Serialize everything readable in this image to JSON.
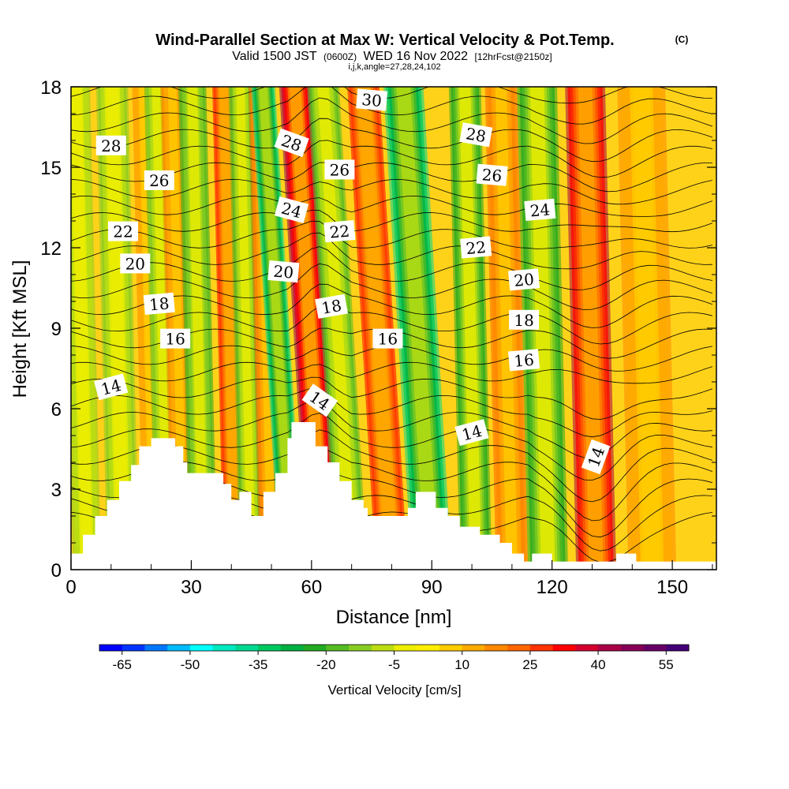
{
  "title": {
    "main": "Wind-Parallel Section at Max W: Vertical Velocity & Pot.Temp.",
    "copyright": "(C)",
    "valid_prefix": "Valid 1500 JST",
    "valid_z": "(0600Z)",
    "valid_date": "WED 16 Nov 2022",
    "forecast": "[12hrFcst@2150z]",
    "indices": "i,j,k,angle=27,28,24,102"
  },
  "chart_data": {
    "type": "heatmap",
    "description_fields": "vertical velocity shaded, potential temperature contoured",
    "xlabel": "Distance [nm]",
    "ylabel": "Height [Kft MSL]",
    "xlim": [
      0,
      161
    ],
    "ylim": [
      0,
      18
    ],
    "x_ticks": [
      "0",
      "30",
      "60",
      "90",
      "120",
      "150"
    ],
    "y_ticks": [
      "0",
      "3",
      "6",
      "9",
      "12",
      "15",
      "18"
    ],
    "colorbar": {
      "title": "Vertical Velocity [cm/s]",
      "min": -70,
      "max": 60,
      "step": 5,
      "tick_labels": [
        "-65",
        "-50",
        "-35",
        "-20",
        "-5",
        "10",
        "25",
        "40",
        "55"
      ],
      "colors": [
        "#0000ff",
        "#0033ff",
        "#0077ff",
        "#00bbff",
        "#00ffff",
        "#00e8c0",
        "#00d890",
        "#00c860",
        "#00b040",
        "#22aa22",
        "#55bb22",
        "#88cc22",
        "#bbdd11",
        "#eeee00",
        "#ffee00",
        "#ffcc00",
        "#ffaa00",
        "#ff8800",
        "#ff6600",
        "#ff3300",
        "#ff0000",
        "#d40030",
        "#aa0044",
        "#880055",
        "#660066",
        "#440077"
      ]
    },
    "velocity_columns": [
      {
        "x": 4,
        "w": -12,
        "z_top": 18,
        "width": 3.5
      },
      {
        "x": 13,
        "w": -15,
        "z_top": 18,
        "width": 4
      },
      {
        "x": 21,
        "w": 15,
        "z_top": 18,
        "width": 3
      },
      {
        "x": 24,
        "w": -18,
        "z_top": 18,
        "width": 3
      },
      {
        "x": 28,
        "w": 18,
        "z_top": 18,
        "width": 3
      },
      {
        "x": 33,
        "w": -22,
        "z_top": 18,
        "width": 3.5
      },
      {
        "x": 41,
        "w": 30,
        "z_top": 18,
        "width": 3
      },
      {
        "x": 45,
        "w": -20,
        "z_top": 18,
        "width": 3
      },
      {
        "x": 50,
        "w": 20,
        "z_top": 18,
        "width": 3
      },
      {
        "x": 55,
        "w": -38,
        "z_top": 18,
        "width": 3
      },
      {
        "x": 63,
        "w": 45,
        "z_top": 18,
        "width": 4
      },
      {
        "x": 70,
        "w": -20,
        "z_top": 18,
        "width": 4
      },
      {
        "x": 80,
        "w": 30,
        "z_top": 18,
        "width": 4
      },
      {
        "x": 90,
        "w": -38,
        "z_top": 18,
        "width": 5
      },
      {
        "x": 101,
        "w": -25,
        "z_top": 18,
        "width": 4
      },
      {
        "x": 110,
        "w": 20,
        "z_top": 18,
        "width": 4
      },
      {
        "x": 119,
        "w": -25,
        "z_top": 18,
        "width": 5
      },
      {
        "x": 131,
        "w": 40,
        "z_top": 18,
        "width": 5
      },
      {
        "x": 145,
        "w": 15,
        "z_top": 18,
        "width": 6
      }
    ],
    "terrain": [
      [
        0,
        0.6
      ],
      [
        3,
        0.6
      ],
      [
        3,
        1.3
      ],
      [
        6,
        1.3
      ],
      [
        6,
        2.0
      ],
      [
        9,
        2.0
      ],
      [
        9,
        2.6
      ],
      [
        12,
        2.6
      ],
      [
        12,
        3.3
      ],
      [
        15,
        3.3
      ],
      [
        15,
        3.9
      ],
      [
        17,
        3.9
      ],
      [
        17,
        4.6
      ],
      [
        20,
        4.6
      ],
      [
        20,
        4.9
      ],
      [
        26,
        4.9
      ],
      [
        26,
        4.6
      ],
      [
        28,
        4.6
      ],
      [
        28,
        4.0
      ],
      [
        29,
        4.0
      ],
      [
        29,
        3.6
      ],
      [
        38,
        3.6
      ],
      [
        38,
        3.2
      ],
      [
        40,
        3.2
      ],
      [
        40,
        2.6
      ],
      [
        42,
        2.6
      ],
      [
        42,
        2.9
      ],
      [
        45,
        2.9
      ],
      [
        45,
        2.0
      ],
      [
        48,
        2.0
      ],
      [
        48,
        2.9
      ],
      [
        51,
        2.9
      ],
      [
        51,
        3.6
      ],
      [
        54,
        3.6
      ],
      [
        54,
        4.9
      ],
      [
        55,
        4.9
      ],
      [
        55,
        5.5
      ],
      [
        61,
        5.5
      ],
      [
        61,
        4.6
      ],
      [
        64,
        4.6
      ],
      [
        64,
        4.0
      ],
      [
        67,
        4.0
      ],
      [
        67,
        3.3
      ],
      [
        70,
        3.3
      ],
      [
        70,
        2.6
      ],
      [
        73,
        2.6
      ],
      [
        73,
        2.3
      ],
      [
        74,
        2.3
      ],
      [
        74,
        2.0
      ],
      [
        84,
        2.0
      ],
      [
        84,
        2.3
      ],
      [
        86,
        2.3
      ],
      [
        86,
        2.9
      ],
      [
        91,
        2.9
      ],
      [
        91,
        2.3
      ],
      [
        94,
        2.3
      ],
      [
        94,
        2.0
      ],
      [
        97,
        2.0
      ],
      [
        97,
        1.6
      ],
      [
        102,
        1.6
      ],
      [
        102,
        1.3
      ],
      [
        107,
        1.3
      ],
      [
        107,
        1.0
      ],
      [
        110,
        1.0
      ],
      [
        110,
        0.6
      ],
      [
        113,
        0.6
      ],
      [
        113,
        0.3
      ],
      [
        115,
        0.3
      ],
      [
        115,
        0.6
      ],
      [
        120,
        0.6
      ],
      [
        120,
        0.3
      ],
      [
        136,
        0.3
      ],
      [
        136,
        0.6
      ],
      [
        141,
        0.6
      ],
      [
        141,
        0.3
      ],
      [
        161,
        0.3
      ]
    ],
    "theta_contour_labels": [
      {
        "text": "30",
        "x": 75,
        "z": 17.5,
        "angle": 5
      },
      {
        "text": "28",
        "x": 10,
        "z": 15.8,
        "angle": 0
      },
      {
        "text": "28",
        "x": 55,
        "z": 15.9,
        "angle": 20
      },
      {
        "text": "28",
        "x": 101,
        "z": 16.2,
        "angle": 10
      },
      {
        "text": "26",
        "x": 22,
        "z": 14.5,
        "angle": 0
      },
      {
        "text": "26",
        "x": 67,
        "z": 14.9,
        "angle": 0
      },
      {
        "text": "26",
        "x": 105,
        "z": 14.7,
        "angle": 5
      },
      {
        "text": "24",
        "x": 55,
        "z": 13.4,
        "angle": 15
      },
      {
        "text": "24",
        "x": 117,
        "z": 13.4,
        "angle": -5
      },
      {
        "text": "22",
        "x": 13,
        "z": 12.6,
        "angle": 0
      },
      {
        "text": "22",
        "x": 67,
        "z": 12.6,
        "angle": -5
      },
      {
        "text": "22",
        "x": 101,
        "z": 12.0,
        "angle": -5
      },
      {
        "text": "20",
        "x": 16,
        "z": 11.4,
        "angle": 0
      },
      {
        "text": "20",
        "x": 53,
        "z": 11.1,
        "angle": 5
      },
      {
        "text": "20",
        "x": 113,
        "z": 10.8,
        "angle": -5
      },
      {
        "text": "18",
        "x": 22,
        "z": 9.9,
        "angle": -5
      },
      {
        "text": "18",
        "x": 65,
        "z": 9.8,
        "angle": -10
      },
      {
        "text": "18",
        "x": 113,
        "z": 9.3,
        "angle": 0
      },
      {
        "text": "16",
        "x": 26,
        "z": 8.6,
        "angle": 0
      },
      {
        "text": "16",
        "x": 79,
        "z": 8.6,
        "angle": 0
      },
      {
        "text": "16",
        "x": 113,
        "z": 7.8,
        "angle": -5
      },
      {
        "text": "14",
        "x": 10,
        "z": 6.8,
        "angle": -15
      },
      {
        "text": "14",
        "x": 62,
        "z": 6.3,
        "angle": 35
      },
      {
        "text": "14",
        "x": 100,
        "z": 5.1,
        "angle": -15
      },
      {
        "text": "14",
        "x": 131,
        "z": 4.2,
        "angle": -70
      }
    ]
  }
}
